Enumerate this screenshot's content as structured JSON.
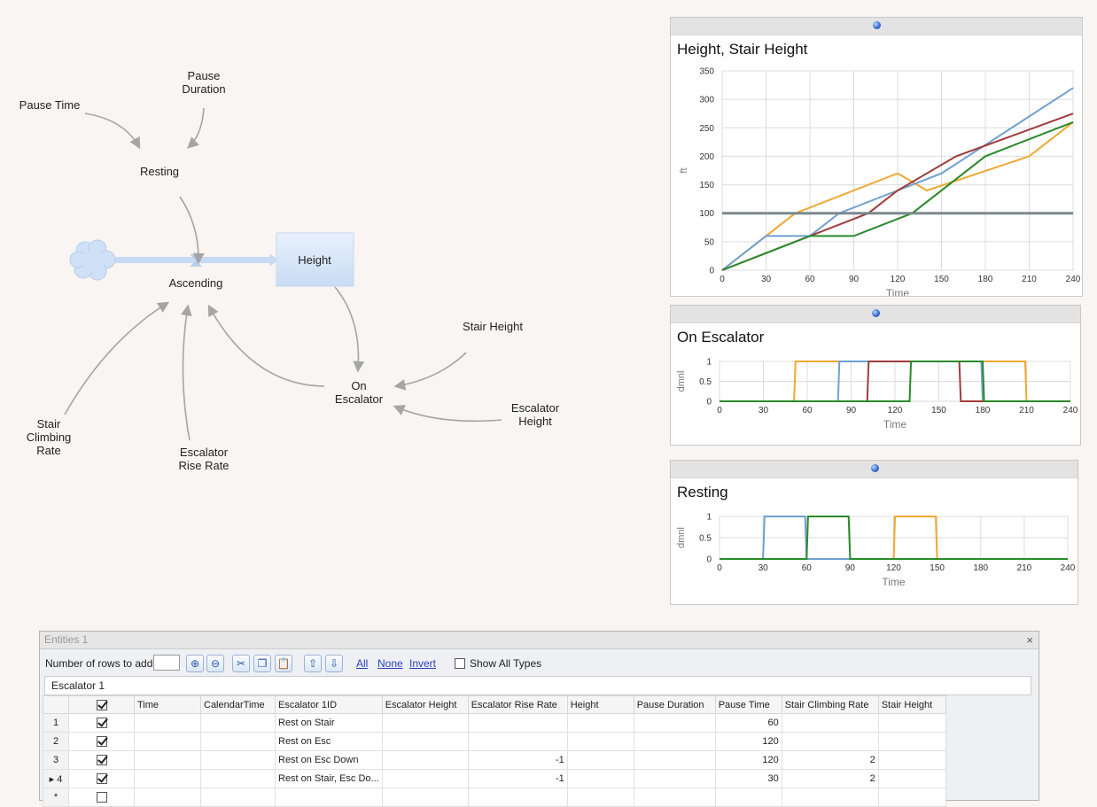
{
  "diagram": {
    "pause_time": "Pause Time",
    "pause_duration_l1": "Pause",
    "pause_duration_l2": "Duration",
    "resting": "Resting",
    "ascending": "Ascending",
    "height": "Height",
    "stair_height": "Stair Height",
    "on_escalator_l1": "On",
    "on_escalator_l2": "Escalator",
    "escalator_height_l1": "Escalator",
    "escalator_height_l2": "Height",
    "stair_climbing_l1": "Stair",
    "stair_climbing_l2": "Climbing",
    "stair_climbing_l3": "Rate",
    "escalator_rise_l1": "Escalator",
    "escalator_rise_l2": "Rise Rate"
  },
  "chart_data": [
    {
      "type": "line",
      "title": "Height, Stair Height",
      "xlabel": "Time",
      "ylabel": "ft",
      "xlim": [
        0,
        240
      ],
      "ylim": [
        0,
        350
      ],
      "xticks": [
        0,
        30,
        60,
        90,
        120,
        150,
        180,
        210,
        240
      ],
      "yticks": [
        0,
        50,
        100,
        150,
        200,
        250,
        300,
        350
      ],
      "grid": true,
      "series": [
        {
          "color": "#f0a830",
          "x": [
            0,
            30,
            50,
            120,
            140,
            210,
            240
          ],
          "y": [
            0,
            60,
            100,
            170,
            140,
            200,
            260
          ]
        },
        {
          "color": "#6fa0d0",
          "x": [
            0,
            30,
            60,
            80,
            120,
            150,
            240
          ],
          "y": [
            0,
            60,
            60,
            100,
            140,
            170,
            320
          ]
        },
        {
          "color": "#a03c3c",
          "x": [
            0,
            100,
            120,
            160,
            240
          ],
          "y": [
            0,
            100,
            140,
            200,
            275
          ]
        },
        {
          "color": "#2a8a2a",
          "x": [
            0,
            60,
            90,
            130,
            180,
            240
          ],
          "y": [
            0,
            60,
            60,
            100,
            200,
            260
          ]
        },
        {
          "color": "#7b8a8c",
          "x": [
            0,
            240
          ],
          "y": [
            100,
            100
          ]
        }
      ]
    },
    {
      "type": "line",
      "title": "On Escalator",
      "xlabel": "Time",
      "ylabel": "dmnl",
      "xlim": [
        0,
        240
      ],
      "ylim": [
        0,
        1
      ],
      "xticks": [
        0,
        30,
        60,
        90,
        120,
        150,
        180,
        210,
        240
      ],
      "yticks": [
        0,
        0.5,
        1
      ],
      "grid": true,
      "series": [
        {
          "color": "#f0a830",
          "x": [
            0,
            51,
            52,
            209,
            210,
            240
          ],
          "y": [
            0,
            0,
            1,
            1,
            0,
            0
          ]
        },
        {
          "color": "#6fa0d0",
          "x": [
            0,
            81,
            82,
            179,
            180,
            240
          ],
          "y": [
            0,
            0,
            1,
            1,
            0,
            0
          ]
        },
        {
          "color": "#a03c3c",
          "x": [
            0,
            101,
            102,
            164,
            165,
            240
          ],
          "y": [
            0,
            0,
            1,
            1,
            0,
            0
          ]
        },
        {
          "color": "#2a8a2a",
          "x": [
            0,
            130,
            131,
            180,
            181,
            240
          ],
          "y": [
            0,
            0,
            1,
            1,
            0,
            0
          ]
        }
      ]
    },
    {
      "type": "line",
      "title": "Resting",
      "xlabel": "Time",
      "ylabel": "dmnl",
      "xlim": [
        0,
        240
      ],
      "ylim": [
        0,
        1
      ],
      "xticks": [
        0,
        30,
        60,
        90,
        120,
        150,
        180,
        210,
        240
      ],
      "yticks": [
        0,
        0.5,
        1
      ],
      "grid": true,
      "series": [
        {
          "color": "#f0a830",
          "x": [
            0,
            120,
            121,
            149,
            150,
            240
          ],
          "y": [
            0,
            0,
            1,
            1,
            0,
            0
          ]
        },
        {
          "color": "#6fa0d0",
          "x": [
            0,
            30,
            31,
            59,
            60,
            240
          ],
          "y": [
            0,
            0,
            1,
            1,
            0,
            0
          ]
        },
        {
          "color": "#2a8a2a",
          "x": [
            0,
            60,
            61,
            89,
            90,
            240
          ],
          "y": [
            0,
            0,
            1,
            1,
            0,
            0
          ]
        }
      ]
    }
  ],
  "grid": {
    "title": "Entities 1",
    "close_label": "×",
    "rows_to_add_label": "Number of rows to add:",
    "link_all": "All",
    "link_none": "None",
    "link_invert": "Invert",
    "show_all_types": "Show All Types",
    "tab": "Escalator 1",
    "columns": [
      "",
      "",
      "Time",
      "CalendarTime",
      "Escalator 1ID",
      "Escalator Height",
      "Escalator Rise Rate",
      "Height",
      "Pause Duration",
      "Pause Time",
      "Stair Climbing Rate",
      "Stair Height"
    ],
    "rows": [
      {
        "num": "1",
        "checked": true,
        "cells": [
          "",
          "",
          "Rest on Stair",
          "",
          "",
          "",
          "",
          "60",
          "",
          ""
        ]
      },
      {
        "num": "2",
        "checked": true,
        "cells": [
          "",
          "",
          "Rest on Esc",
          "",
          "",
          "",
          "",
          "120",
          "",
          ""
        ]
      },
      {
        "num": "3",
        "checked": true,
        "cells": [
          "",
          "",
          "Rest on Esc Down",
          "",
          "-1",
          "",
          "",
          "120",
          "2",
          ""
        ]
      },
      {
        "num": "▸ 4",
        "checked": true,
        "cells": [
          "",
          "",
          "Rest on Stair, Esc Do...",
          "",
          "-1",
          "",
          "",
          "30",
          "2",
          ""
        ]
      },
      {
        "num": "*",
        "checked": false,
        "cells": [
          "",
          "",
          "",
          "",
          "",
          "",
          "",
          "",
          "",
          ""
        ]
      }
    ]
  }
}
